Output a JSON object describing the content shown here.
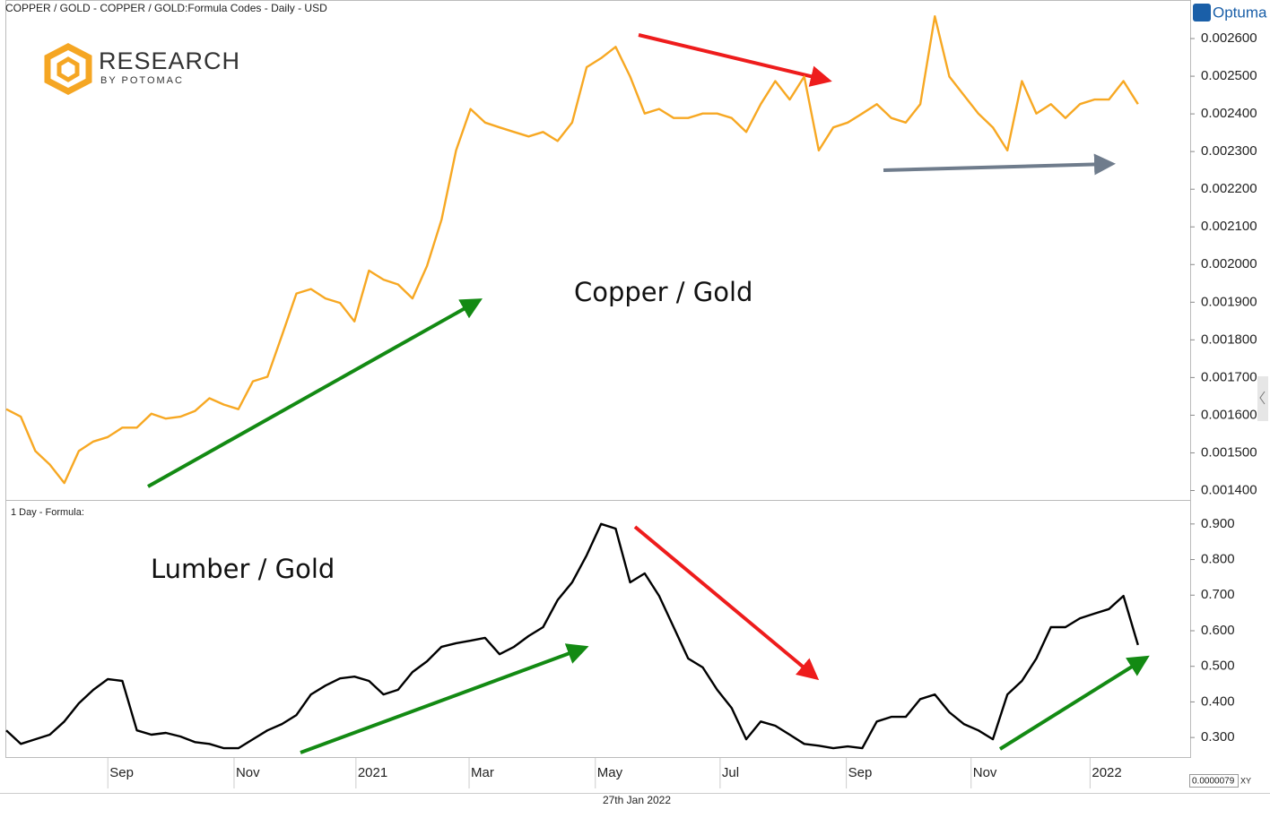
{
  "header": {
    "brand": "RESEARCH",
    "brand_sub": "BY POTOMAC",
    "vendor": "Optuma"
  },
  "controls": {
    "scale_value": "0.0000079",
    "scale_mode": "XY"
  },
  "chart_data": [
    {
      "type": "line",
      "title": "COPPER / GOLD - COPPER / GOLD:Formula Codes - Daily - USD",
      "annotation": "Copper / Gold",
      "color": "#f7a823",
      "values": [
        0.001616,
        0.001596,
        0.001505,
        0.001469,
        0.00142,
        0.001505,
        0.00153,
        0.001542,
        0.001567,
        0.001567,
        0.001604,
        0.001591,
        0.001596,
        0.001611,
        0.001645,
        0.001628,
        0.001616,
        0.00169,
        0.001702,
        0.001812,
        0.001923,
        0.001935,
        0.00191,
        0.001898,
        0.001849,
        0.001984,
        0.00196,
        0.001947,
        0.00191,
        0.001996,
        0.002119,
        0.002303,
        0.002413,
        0.002377,
        0.002364,
        0.002352,
        0.00234,
        0.002352,
        0.002328,
        0.002377,
        0.002524,
        0.002548,
        0.002578,
        0.002499,
        0.002401,
        0.002413,
        0.002389,
        0.002389,
        0.002401,
        0.002401,
        0.002389,
        0.002352,
        0.002426,
        0.002487,
        0.002438,
        0.002499,
        0.002303,
        0.002364,
        0.002377,
        0.002401,
        0.002426,
        0.002389,
        0.002377,
        0.002426,
        0.002659,
        0.002499,
        0.00245,
        0.002401,
        0.002364,
        0.002303,
        0.002487,
        0.002401,
        0.002426,
        0.002389,
        0.002426,
        0.002438,
        0.002438,
        0.002487,
        0.002426
      ],
      "xlim": [
        0,
        81.6
      ],
      "ylim": [
        0.001375,
        0.0027
      ],
      "yticks": [
        {
          "value": 0.0014,
          "label": "0.001400"
        },
        {
          "value": 0.0015,
          "label": "0.001500"
        },
        {
          "value": 0.0016,
          "label": "0.001600"
        },
        {
          "value": 0.0017,
          "label": "0.001700"
        },
        {
          "value": 0.0018,
          "label": "0.001800"
        },
        {
          "value": 0.0019,
          "label": "0.001900"
        },
        {
          "value": 0.002,
          "label": "0.002000"
        },
        {
          "value": 0.0021,
          "label": "0.002100"
        },
        {
          "value": 0.0022,
          "label": "0.002200"
        },
        {
          "value": 0.0023,
          "label": "0.002300"
        },
        {
          "value": 0.0024,
          "label": "0.002400"
        },
        {
          "value": 0.0025,
          "label": "0.002500"
        },
        {
          "value": 0.0026,
          "label": "0.002600"
        }
      ]
    },
    {
      "type": "line",
      "title": "1 Day - Formula:",
      "annotation": "Lumber / Gold",
      "color": "#000000",
      "xlabel": "27th Jan 2022",
      "values": [
        0.32,
        0.282,
        0.295,
        0.308,
        0.345,
        0.396,
        0.434,
        0.464,
        0.459,
        0.32,
        0.308,
        0.313,
        0.303,
        0.287,
        0.282,
        0.27,
        0.27,
        0.295,
        0.32,
        0.338,
        0.363,
        0.421,
        0.446,
        0.466,
        0.471,
        0.459,
        0.421,
        0.434,
        0.484,
        0.514,
        0.555,
        0.565,
        0.572,
        0.58,
        0.534,
        0.555,
        0.585,
        0.61,
        0.686,
        0.736,
        0.812,
        0.9,
        0.887,
        0.736,
        0.761,
        0.698,
        0.61,
        0.522,
        0.497,
        0.434,
        0.383,
        0.295,
        0.345,
        0.333,
        0.308,
        0.282,
        0.277,
        0.27,
        0.275,
        0.27,
        0.345,
        0.358,
        0.358,
        0.408,
        0.421,
        0.371,
        0.338,
        0.32,
        0.295,
        0.421,
        0.459,
        0.522,
        0.61,
        0.61,
        0.635,
        0.648,
        0.661,
        0.698,
        0.56
      ],
      "xlim": [
        0,
        81.6
      ],
      "ylim": [
        0.245,
        0.965
      ],
      "yticks": [
        {
          "value": 0.3,
          "label": "0.300"
        },
        {
          "value": 0.4,
          "label": "0.400"
        },
        {
          "value": 0.5,
          "label": "0.500"
        },
        {
          "value": 0.6,
          "label": "0.600"
        },
        {
          "value": 0.7,
          "label": "0.700"
        },
        {
          "value": 0.8,
          "label": "0.800"
        },
        {
          "value": 0.9,
          "label": "0.900"
        }
      ],
      "xticks": [
        {
          "value": 7,
          "label": "Sep"
        },
        {
          "value": 15.7,
          "label": "Nov"
        },
        {
          "value": 24.1,
          "label": "2021"
        },
        {
          "value": 31.9,
          "label": "Mar"
        },
        {
          "value": 40.6,
          "label": "May"
        },
        {
          "value": 49.2,
          "label": "Jul"
        },
        {
          "value": 57.9,
          "label": "Sep"
        },
        {
          "value": 66.5,
          "label": "Nov"
        },
        {
          "value": 74.7,
          "label": "2022"
        }
      ]
    }
  ]
}
